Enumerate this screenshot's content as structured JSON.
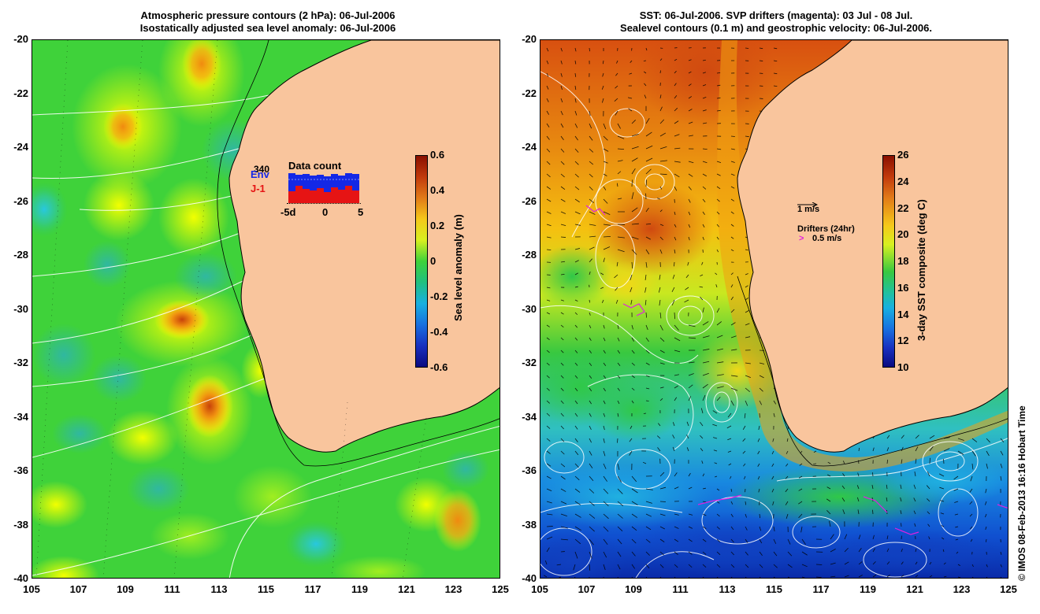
{
  "left_panel": {
    "title_line1": "Atmospheric pressure contours (2 hPa): 06-Jul-2006",
    "title_line2": "Isostatically adjusted sea level anomaly: 06-Jul-2006",
    "colorbar": {
      "title": "Sea level anomaly (m)",
      "ticks": [
        "0.6",
        "0.4",
        "0.2",
        "0",
        "-0.2",
        "-0.4",
        "-0.6"
      ],
      "range": [
        -0.6,
        0.6
      ]
    },
    "inset": {
      "title": "Data count",
      "count_label": "340",
      "legend_env": "Env",
      "legend_j1": "J-1",
      "x_ticks": [
        "-5d",
        "0",
        "5"
      ],
      "env_color": "#1428e6",
      "j1_color": "#e61414"
    }
  },
  "right_panel": {
    "title_line1": "SST: 06-Jul-2006. SVP drifters (magenta): 03 Jul - 08 Jul.",
    "title_line2": "Sealevel contours (0.1 m) and geostrophic velocity: 06-Jul-2006.",
    "colorbar": {
      "title": "3-day SST composite (deg C)",
      "ticks": [
        "26",
        "24",
        "22",
        "20",
        "18",
        "16",
        "14",
        "12",
        "10"
      ],
      "range": [
        10,
        26
      ]
    },
    "scale_label": "1 m/s",
    "drifters_label": "Drifters (24hr)",
    "drifters_speed": "0.5 m/s"
  },
  "axes": {
    "y_ticks": [
      "-20",
      "-22",
      "-24",
      "-26",
      "-28",
      "-30",
      "-32",
      "-34",
      "-36",
      "-38",
      "-40"
    ],
    "x_ticks": [
      "105",
      "107",
      "109",
      "111",
      "113",
      "115",
      "117",
      "119",
      "121",
      "123",
      "125"
    ],
    "lat_range": [
      -40,
      -20
    ],
    "lon_range": [
      105,
      125
    ]
  },
  "credit": "© IMOS 08-Feb-2013 16:16 Hobart Time",
  "colors": {
    "land": "#f9c59d",
    "drifter": "#e020e0"
  }
}
